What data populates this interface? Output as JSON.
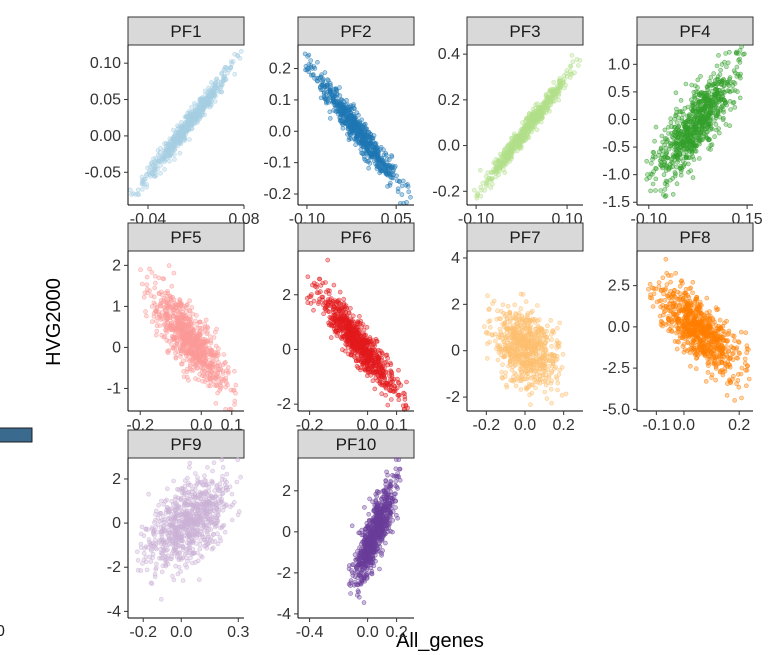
{
  "chart_data": {
    "type": "scatter",
    "layout": "facet-grid",
    "xlabel": "All_genes",
    "ylabel": "HVG2000",
    "edge_fragment": "0",
    "panels": [
      {
        "name": "PF1",
        "color": "#A6CEE3",
        "xlim": [
          -0.065,
          0.08
        ],
        "ylim": [
          -0.095,
          0.125
        ],
        "xticks": [
          -0.04,
          0.08
        ],
        "xtick_labels": [
          "-0.04",
          "0.08"
        ],
        "yticks": [
          0.1,
          0.05,
          0.0,
          -0.05
        ],
        "ytick_labels": [
          "0.10",
          "0.05",
          "0.00",
          "-0.05"
        ],
        "x_range": [
          -0.058,
          0.076
        ],
        "trend": [
          -0.083,
          0.11
        ],
        "spread": 0.006,
        "n": 600
      },
      {
        "name": "PF2",
        "color": "#1F78B4",
        "xlim": [
          -0.115,
          0.08
        ],
        "ylim": [
          -0.235,
          0.275
        ],
        "xticks": [
          -0.1,
          0.05
        ],
        "xtick_labels": [
          "-0.10",
          "0.05"
        ],
        "yticks": [
          0.2,
          0.1,
          0.0,
          -0.1,
          -0.2
        ],
        "ytick_labels": [
          "0.2",
          "0.1",
          "0.0",
          "-0.1",
          "-0.2"
        ],
        "x_range": [
          -0.098,
          0.07
        ],
        "trend": [
          0.21,
          -0.21
        ],
        "spread": 0.022,
        "n": 700
      },
      {
        "name": "PF3",
        "color": "#B2DF8A",
        "xlim": [
          -0.12,
          0.135
        ],
        "ylim": [
          -0.26,
          0.44
        ],
        "xticks": [
          -0.1,
          0.1
        ],
        "xtick_labels": [
          "-0.10",
          "0.10"
        ],
        "yticks": [
          0.4,
          0.2,
          0.0,
          -0.2
        ],
        "ytick_labels": [
          "0.4",
          "0.2",
          "0.0",
          "-0.2"
        ],
        "x_range": [
          -0.1,
          0.125
        ],
        "trend": [
          -0.22,
          0.37
        ],
        "spread": 0.018,
        "n": 600
      },
      {
        "name": "PF4",
        "color": "#33A02C",
        "xlim": [
          -0.13,
          0.165
        ],
        "ylim": [
          -1.55,
          1.35
        ],
        "xticks": [
          -0.1,
          0.15
        ],
        "xtick_labels": [
          "-0.10",
          "0.15"
        ],
        "yticks": [
          1.0,
          0.5,
          0.0,
          -0.5,
          -1.0,
          -1.5
        ],
        "ytick_labels": [
          "1.0",
          "0.5",
          "0.0",
          "-0.5",
          "-1.0",
          "-1.5"
        ],
        "x_range": [
          -0.1,
          0.14
        ],
        "trend": [
          -1.1,
          0.9
        ],
        "spread": 0.3,
        "n": 800
      },
      {
        "name": "PF5",
        "color": "#FB9A99",
        "xlim": [
          -0.24,
          0.14
        ],
        "ylim": [
          -1.55,
          2.35
        ],
        "xticks": [
          -0.2,
          0.0,
          0.1
        ],
        "xtick_labels": [
          "-0.2",
          "0.0",
          "0.1"
        ],
        "yticks": [
          2,
          1,
          0,
          -1
        ],
        "ytick_labels": [
          "2",
          "1",
          "0",
          "-1"
        ],
        "x_range": [
          -0.19,
          0.11
        ],
        "trend": [
          1.4,
          -1.0
        ],
        "spread": 0.35,
        "n": 800
      },
      {
        "name": "PF6",
        "color": "#E31A1C",
        "xlim": [
          -0.24,
          0.16
        ],
        "ylim": [
          -2.25,
          3.6
        ],
        "xticks": [
          -0.2,
          0.0,
          0.1
        ],
        "xtick_labels": [
          "-0.2",
          "0.0",
          "0.1"
        ],
        "yticks": [
          2,
          0,
          -2
        ],
        "ytick_labels": [
          "2",
          "0",
          "-2"
        ],
        "x_range": [
          -0.2,
          0.13
        ],
        "trend": [
          2.4,
          -1.8
        ],
        "spread": 0.35,
        "n": 800
      },
      {
        "name": "PF7",
        "color": "#FDBF6F",
        "xlim": [
          -0.3,
          0.3
        ],
        "ylim": [
          -2.6,
          4.3
        ],
        "xticks": [
          -0.2,
          0.0,
          0.2
        ],
        "xtick_labels": [
          "-0.2",
          "0.0",
          "0.2"
        ],
        "yticks": [
          4,
          2,
          0,
          -2
        ],
        "ytick_labels": [
          "4",
          "2",
          "0",
          "-2"
        ],
        "x_range": [
          -0.2,
          0.2
        ],
        "trend": [
          0.8,
          -0.5
        ],
        "spread": 0.8,
        "n": 700
      },
      {
        "name": "PF8",
        "color": "#FF7F00",
        "xlim": [
          -0.17,
          0.25
        ],
        "ylim": [
          -5.1,
          4.6
        ],
        "xticks": [
          -0.1,
          0.0,
          0.2
        ],
        "xtick_labels": [
          "-0.1",
          "0.0",
          "0.2"
        ],
        "yticks": [
          2.5,
          0.0,
          -2.5,
          -5.0
        ],
        "ytick_labels": [
          "2.5",
          "0.0",
          "-2.5",
          "-5.0"
        ],
        "x_range": [
          -0.12,
          0.23
        ],
        "trend": [
          2.2,
          -2.6
        ],
        "spread": 0.9,
        "n": 800
      },
      {
        "name": "PF9",
        "color": "#CAB2D6",
        "xlim": [
          -0.28,
          0.33
        ],
        "ylim": [
          -4.3,
          2.95
        ],
        "xticks": [
          -0.2,
          0.0,
          0.3
        ],
        "xtick_labels": [
          "-0.2",
          "0.0",
          "0.3"
        ],
        "yticks": [
          2,
          0,
          -2,
          -4
        ],
        "ytick_labels": [
          "2",
          "0",
          "-2",
          "-4"
        ],
        "x_range": [
          -0.22,
          0.3
        ],
        "trend": [
          -1.2,
          1.3
        ],
        "spread": 0.85,
        "n": 800
      },
      {
        "name": "PF10",
        "color": "#6A3D9A",
        "xlim": [
          -0.48,
          0.32
        ],
        "ylim": [
          -4.2,
          3.6
        ],
        "xticks": [
          -0.4,
          0.0,
          0.2
        ],
        "xtick_labels": [
          "-0.4",
          "0.0",
          "0.2"
        ],
        "yticks": [
          2,
          0,
          -2,
          -4
        ],
        "ytick_labels": [
          "2",
          "0",
          "-2",
          "-4"
        ],
        "x_range": [
          -0.12,
          0.22
        ],
        "trend": [
          -2.6,
          2.4
        ],
        "spread": 0.7,
        "n": 800
      }
    ]
  }
}
